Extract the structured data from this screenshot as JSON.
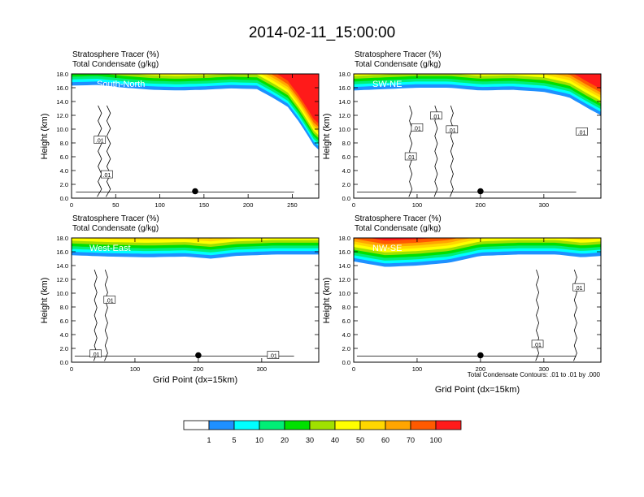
{
  "title": "2014-02-11_15:00:00",
  "colors": {
    "levels": [
      "#ffffff",
      "#1e90ff",
      "#00ffff",
      "#00ee76",
      "#00e000",
      "#a0e000",
      "#ffff00",
      "#ffd700",
      "#ffa500",
      "#ff5a00",
      "#ff1a1a"
    ],
    "contour": "#000000"
  },
  "colorbar": {
    "labels": [
      "1",
      "5",
      "10",
      "20",
      "30",
      "40",
      "50",
      "60",
      "70",
      "100"
    ]
  },
  "contour_note": "Total Condensate Contours: .01 to .01 by .000",
  "chart_data": [
    {
      "type": "contour",
      "subtitle_1": "Stratosphere Tracer   (%)",
      "subtitle_2": "Total Condensate   (g/kg)",
      "panel_label": "South-North",
      "ylabel": "Height (km)",
      "xlabel": "",
      "xlim": [
        0,
        280
      ],
      "ylim": [
        0,
        18
      ],
      "xticks": [
        0,
        50,
        100,
        150,
        200,
        250
      ],
      "yticks": [
        "0.0",
        "2.0",
        "4.0",
        "6.0",
        "8.0",
        "10.0",
        "12.0",
        "14.0",
        "16.0",
        "18.0"
      ],
      "marker": [
        140,
        1.0
      ],
      "contour_labels": [
        {
          "text": ".01",
          "x": 32,
          "y": 8.4
        },
        {
          "text": ".01",
          "x": 40,
          "y": 3.4
        }
      ],
      "tropopause": [
        [
          0,
          16.3
        ],
        [
          30,
          16.4
        ],
        [
          60,
          16.0
        ],
        [
          90,
          15.7
        ],
        [
          120,
          15.6
        ],
        [
          150,
          15.7
        ],
        [
          180,
          15.9
        ],
        [
          210,
          15.8
        ],
        [
          230,
          14.4
        ],
        [
          245,
          13.2
        ],
        [
          258,
          11.0
        ],
        [
          268,
          9.0
        ],
        [
          275,
          7.5
        ],
        [
          280,
          7.0
        ]
      ]
    },
    {
      "type": "contour",
      "subtitle_1": "Stratosphere Tracer   (%)",
      "subtitle_2": "Total Condensate   (g/kg)",
      "panel_label": "SW-NE",
      "ylabel": "Height (km)",
      "xlabel": "",
      "xlim": [
        0,
        390
      ],
      "ylim": [
        0,
        18
      ],
      "xticks": [
        0,
        100,
        200,
        300
      ],
      "yticks": [
        "0.0",
        "2.0",
        "4.0",
        "6.0",
        "8.0",
        "10.0",
        "12.0",
        "14.0",
        "16.0",
        "18.0"
      ],
      "marker": [
        200,
        1.0
      ],
      "contour_labels": [
        {
          "text": ".01",
          "x": 100,
          "y": 10.2
        },
        {
          "text": ".01",
          "x": 130,
          "y": 11.9
        },
        {
          "text": ".01",
          "x": 155,
          "y": 9.9
        },
        {
          "text": ".01",
          "x": 90,
          "y": 6.0
        },
        {
          "text": ".01",
          "x": 360,
          "y": 9.6
        }
      ],
      "tropopause": [
        [
          0,
          15.6
        ],
        [
          50,
          15.8
        ],
        [
          100,
          16.0
        ],
        [
          150,
          16.0
        ],
        [
          200,
          15.6
        ],
        [
          250,
          15.7
        ],
        [
          300,
          15.4
        ],
        [
          340,
          14.6
        ],
        [
          370,
          13.0
        ],
        [
          390,
          12.0
        ]
      ]
    },
    {
      "type": "contour",
      "subtitle_1": "Stratosphere Tracer   (%)",
      "subtitle_2": "Total Condensate   (g/kg)",
      "panel_label": "West-East",
      "ylabel": "Height (km)",
      "xlabel": "Grid Point (dx=15km)",
      "xlim": [
        0,
        390
      ],
      "ylim": [
        0,
        18
      ],
      "xticks": [
        0,
        100,
        200,
        300
      ],
      "yticks": [
        "0.0",
        "2.0",
        "4.0",
        "6.0",
        "8.0",
        "10.0",
        "12.0",
        "14.0",
        "16.0",
        "18.0"
      ],
      "marker": [
        200,
        1.0
      ],
      "contour_labels": [
        {
          "text": ".01",
          "x": 60,
          "y": 9.0
        },
        {
          "text": ".01",
          "x": 38,
          "y": 1.2
        },
        {
          "text": ".01",
          "x": 318,
          "y": 1.0
        }
      ],
      "tropopause": [
        [
          0,
          15.5
        ],
        [
          60,
          15.3
        ],
        [
          120,
          15.2
        ],
        [
          180,
          15.3
        ],
        [
          220,
          15.0
        ],
        [
          260,
          15.4
        ],
        [
          320,
          15.6
        ],
        [
          390,
          15.6
        ]
      ]
    },
    {
      "type": "contour",
      "subtitle_1": "Stratosphere Tracer   (%)",
      "subtitle_2": "Total Condensate   (g/kg)",
      "panel_label": "NW-SE",
      "ylabel": "Height (km)",
      "xlabel": "Grid Point (dx=15km)",
      "xlim": [
        0,
        390
      ],
      "ylim": [
        0,
        18
      ],
      "xticks": [
        0,
        100,
        200,
        300
      ],
      "yticks": [
        "0.0",
        "2.0",
        "4.0",
        "6.0",
        "8.0",
        "10.0",
        "12.0",
        "14.0",
        "16.0",
        "18.0"
      ],
      "marker": [
        200,
        1.0
      ],
      "contour_labels": [
        {
          "text": ".01",
          "x": 355,
          "y": 10.8
        },
        {
          "text": ".01",
          "x": 290,
          "y": 2.6
        }
      ],
      "tropopause": [
        [
          0,
          14.6
        ],
        [
          50,
          13.8
        ],
        [
          100,
          14.0
        ],
        [
          150,
          14.4
        ],
        [
          200,
          15.4
        ],
        [
          260,
          15.6
        ],
        [
          320,
          15.6
        ],
        [
          360,
          15.2
        ],
        [
          390,
          15.4
        ]
      ]
    }
  ]
}
